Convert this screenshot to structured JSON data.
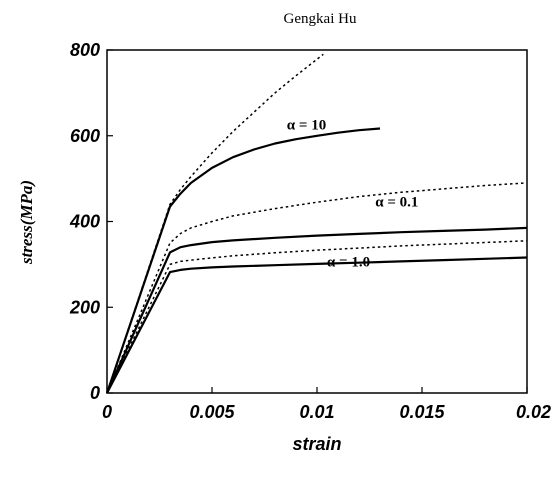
{
  "header": {
    "author": "Gengkai Hu"
  },
  "chart_data": {
    "type": "line",
    "xlabel": "strain",
    "ylabel": "stress(MPa)",
    "xlim": [
      0,
      0.02
    ],
    "ylim": [
      0,
      800
    ],
    "x_ticks": [
      0,
      0.005,
      0.01,
      0.015,
      0.02
    ],
    "x_tick_labels": [
      "0",
      "0.005",
      "0.01",
      "0.015",
      "0.02"
    ],
    "y_ticks": [
      0,
      200,
      400,
      600,
      800
    ],
    "y_tick_labels": [
      "0",
      "200",
      "400",
      "600",
      "800"
    ],
    "grid": false,
    "series": [
      {
        "style": "dotted",
        "color": "#000000",
        "x": [
          0,
          0.003,
          0.0035,
          0.004,
          0.005,
          0.006,
          0.007,
          0.008,
          0.009,
          0.0103
        ],
        "y": [
          0,
          440,
          475,
          505,
          560,
          610,
          655,
          700,
          740,
          790
        ]
      },
      {
        "style": "solid",
        "color": "#000000",
        "x": [
          0,
          0.003,
          0.0035,
          0.004,
          0.005,
          0.006,
          0.007,
          0.008,
          0.009,
          0.01,
          0.011,
          0.012,
          0.013
        ],
        "y": [
          0,
          435,
          465,
          490,
          525,
          550,
          568,
          582,
          592,
          600,
          607,
          613,
          617
        ]
      },
      {
        "style": "dotted",
        "color": "#000000",
        "x": [
          0,
          0.003,
          0.0035,
          0.004,
          0.005,
          0.006,
          0.008,
          0.01,
          0.012,
          0.014,
          0.016,
          0.018,
          0.02
        ],
        "y": [
          0,
          350,
          372,
          385,
          400,
          413,
          430,
          445,
          458,
          468,
          476,
          484,
          490
        ]
      },
      {
        "style": "solid",
        "color": "#000000",
        "x": [
          0,
          0.003,
          0.0035,
          0.004,
          0.005,
          0.006,
          0.008,
          0.01,
          0.012,
          0.014,
          0.016,
          0.018,
          0.02
        ],
        "y": [
          0,
          328,
          340,
          345,
          352,
          356,
          362,
          367,
          371,
          375,
          378,
          381,
          385
        ]
      },
      {
        "style": "dotted",
        "color": "#000000",
        "x": [
          0,
          0.003,
          0.0035,
          0.004,
          0.005,
          0.006,
          0.008,
          0.01,
          0.012,
          0.014,
          0.016,
          0.018,
          0.02
        ],
        "y": [
          0,
          300,
          307,
          310,
          315,
          320,
          327,
          333,
          338,
          343,
          347,
          351,
          355
        ]
      },
      {
        "style": "solid",
        "color": "#000000",
        "x": [
          0,
          0.003,
          0.0035,
          0.004,
          0.005,
          0.006,
          0.008,
          0.01,
          0.012,
          0.014,
          0.016,
          0.018,
          0.02
        ],
        "y": [
          0,
          282,
          287,
          290,
          293,
          295,
          298,
          301,
          304,
          307,
          310,
          313,
          316
        ]
      }
    ],
    "annotations": [
      {
        "text": "α = 10",
        "x": 0.0095,
        "y": 615
      },
      {
        "text": "α = 0.1",
        "x": 0.0138,
        "y": 435
      },
      {
        "text": "α = 1.0",
        "x": 0.0115,
        "y": 295
      }
    ]
  }
}
